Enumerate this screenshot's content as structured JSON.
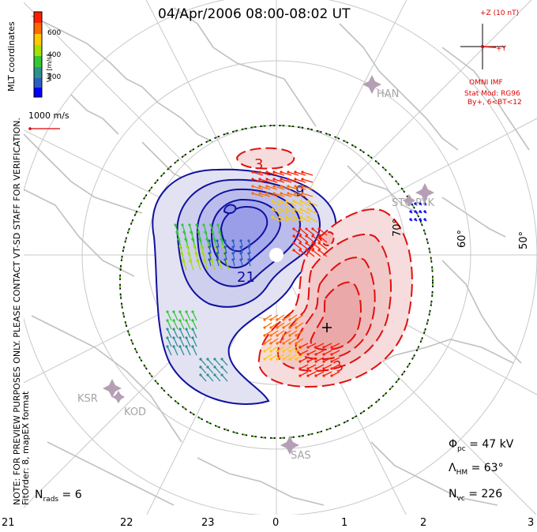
{
  "title": "04/Apr/2006 08:00-08:02 UT",
  "colorbar": {
    "title": "MLT coordinates",
    "unit_label": "Vel [m/s]",
    "ticks": [
      "600",
      "400",
      "200"
    ],
    "colors": [
      "#ff1e00",
      "#ff6a00",
      "#ffc800",
      "#a6e000",
      "#33c833",
      "#2f8f8f",
      "#2a5fc6",
      "#0000ff"
    ]
  },
  "vector_scale": "1000 m/s",
  "imf": {
    "z_label": "+Z (10 nT)",
    "y_label": "+Y",
    "source": "OMNI IMF",
    "model": "Stat Mod: RG96",
    "condition": "By+, 6<BT<12"
  },
  "sites": [
    "HAN",
    "STO",
    "PYK",
    "KSR",
    "KOD",
    "SAS"
  ],
  "latitude_labels": [
    "70°",
    "60°",
    "50°"
  ],
  "contour_labels": [
    "3",
    "9",
    "21",
    "3"
  ],
  "mlt_labels": [
    "21",
    "22",
    "23",
    "0",
    "1",
    "2",
    "3"
  ],
  "side_note_line1": "NOTE: FOR PREVIEW PURPOSES ONLY. PLEASE CONTACT VT-SD STAFF FOR VERIFICATION.",
  "side_note_line2": "FitOrder: 8, mapEX format",
  "stats": {
    "nrads_label": "N",
    "nrads_sub": "rads",
    "nrads_value": " = 6",
    "phi_label": "Φ",
    "phi_sub": "pc",
    "phi_value": " = 47 kV",
    "lambda_label": "Λ",
    "lambda_sub": "HM",
    "lambda_value": " = 63°",
    "nvc_label": "N",
    "nvc_sub": "vc",
    "nvc_value": " = 226"
  }
}
